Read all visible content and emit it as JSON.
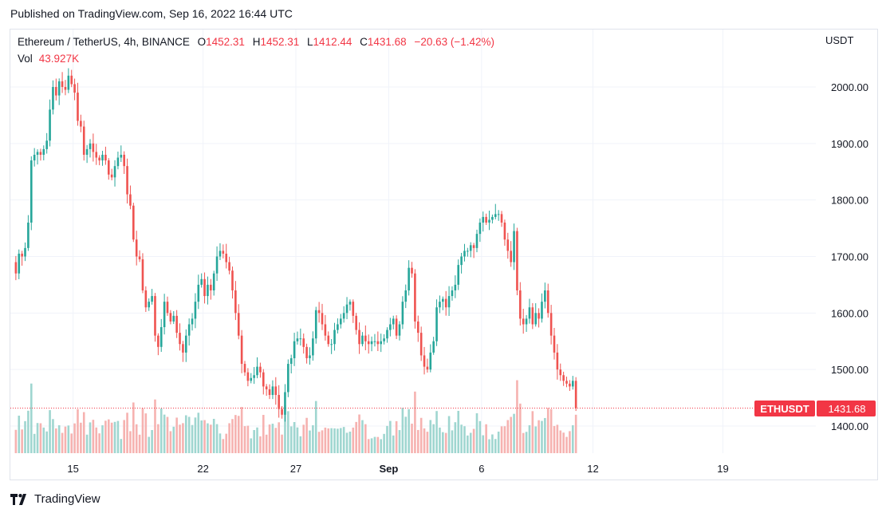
{
  "header": {
    "published": "Published on TradingView.com, Sep 16, 2022 16:44 UTC"
  },
  "legend": {
    "pair": "Ethereum / TetherUS, 4h, BINANCE",
    "o_label": "O",
    "o": "1452.31",
    "h_label": "H",
    "h": "1452.31",
    "l_label": "L",
    "l": "1412.44",
    "c_label": "C",
    "c": "1431.68",
    "change": "−20.63 (−1.42%)",
    "vol_label": "Vol",
    "vol": "43.927K"
  },
  "axis": {
    "unit": "USDT"
  },
  "price_tag": {
    "symbol": "ETHUSDT",
    "value": "1431.68"
  },
  "footer": {
    "brand": "TradingView"
  },
  "colors": {
    "up": "#26a69a",
    "down": "#ef5350",
    "up_vol": "#9fd6d0",
    "down_vol": "#f6b2b0",
    "grid": "#f0f3fa",
    "tag": "#f23645"
  },
  "chart_data": {
    "type": "candlestick",
    "title": "Ethereum / TetherUS, 4h, BINANCE",
    "ylabel": "USDT",
    "ylim": [
      1350,
      2070
    ],
    "y_ticks": [
      "1400.00",
      "1500.00",
      "1600.00",
      "1700.00",
      "1800.00",
      "1900.00",
      "2000.00"
    ],
    "y_tick_values": [
      1400,
      1500,
      1600,
      1700,
      1800,
      1900,
      2000
    ],
    "x_ticks": [
      {
        "label": "15",
        "bar": 19.5
      },
      {
        "label": "22",
        "bar": 61.5
      },
      {
        "label": "27",
        "bar": 91.5
      },
      {
        "label": "Sep",
        "bar": 121.5
      },
      {
        "label": "6",
        "bar": 151.5
      },
      {
        "label": "12",
        "bar": 187.5
      },
      {
        "label": "19",
        "bar": 229.5
      }
    ],
    "last_price": 1431.68,
    "volume_max_k": 190,
    "close_path": [
      1690,
      1670,
      1705,
      1700,
      1715,
      1760,
      1870,
      1880,
      1885,
      1880,
      1890,
      1905,
      1960,
      2000,
      1985,
      2010,
      2000,
      1995,
      2020,
      2005,
      1990,
      1940,
      1930,
      1880,
      1890,
      1900,
      1885,
      1875,
      1870,
      1880,
      1870,
      1845,
      1840,
      1860,
      1875,
      1880,
      1860,
      1810,
      1790,
      1730,
      1700,
      1695,
      1640,
      1610,
      1620,
      1630,
      1560,
      1540,
      1575,
      1620,
      1600,
      1585,
      1595,
      1565,
      1545,
      1530,
      1560,
      1580,
      1590,
      1620,
      1650,
      1660,
      1630,
      1650,
      1640,
      1670,
      1700,
      1710,
      1705,
      1690,
      1675,
      1640,
      1600,
      1560,
      1510,
      1495,
      1480,
      1485,
      1490,
      1505,
      1495,
      1470,
      1465,
      1455,
      1470,
      1455,
      1430,
      1420,
      1460,
      1510,
      1520,
      1550,
      1555,
      1555,
      1540,
      1520,
      1525,
      1555,
      1605,
      1600,
      1580,
      1560,
      1545,
      1545,
      1570,
      1580,
      1590,
      1600,
      1615,
      1620,
      1595,
      1570,
      1545,
      1560,
      1550,
      1545,
      1550,
      1550,
      1545,
      1550,
      1555,
      1570,
      1580,
      1590,
      1560,
      1580,
      1620,
      1640,
      1680,
      1670,
      1585,
      1565,
      1525,
      1505,
      1500,
      1530,
      1550,
      1610,
      1620,
      1625,
      1610,
      1630,
      1640,
      1650,
      1685,
      1700,
      1710,
      1710,
      1720,
      1715,
      1740,
      1760,
      1770,
      1760,
      1765,
      1770,
      1775,
      1775,
      1760,
      1730,
      1710,
      1690,
      1745,
      1640,
      1590,
      1580,
      1590,
      1610,
      1580,
      1600,
      1590,
      1620,
      1640,
      1600,
      1560,
      1530,
      1500,
      1490,
      1480,
      1475,
      1470,
      1480,
      1431.68
    ],
    "series": [
      {
        "name": "ETHUSDT",
        "type": "candles"
      },
      {
        "name": "Vol",
        "type": "volume"
      }
    ]
  }
}
